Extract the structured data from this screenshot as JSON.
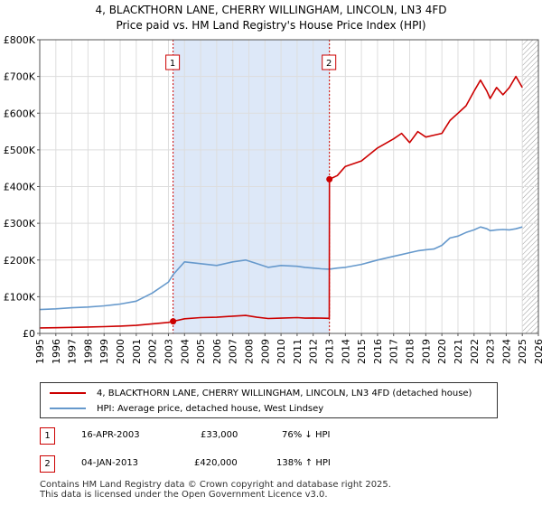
{
  "title_line1": "4, BLACKTHORN LANE, CHERRY WILLINGHAM, LINCOLN, LN3 4FD",
  "title_line2": "Price paid vs. HM Land Registry's House Price Index (HPI)",
  "colors": {
    "property": "#cc0000",
    "hpi": "#6699cc",
    "shade": "#dde8f8",
    "grid": "#dddddd"
  },
  "chart_data": {
    "type": "line",
    "title": "Price paid vs. HM Land Registry's House Price Index (HPI)",
    "xlabel": "",
    "ylabel": "",
    "xlim": [
      1995,
      2026
    ],
    "ylim": [
      0,
      800000
    ],
    "x_ticks": [
      "1995",
      "1996",
      "1997",
      "1998",
      "1999",
      "2000",
      "2001",
      "2002",
      "2003",
      "2004",
      "2005",
      "2006",
      "2007",
      "2008",
      "2009",
      "2010",
      "2011",
      "2012",
      "2013",
      "2014",
      "2015",
      "2016",
      "2017",
      "2018",
      "2019",
      "2020",
      "2021",
      "2022",
      "2023",
      "2024",
      "2025",
      "2026"
    ],
    "y_ticks": [
      {
        "value": 0,
        "label": "£0"
      },
      {
        "value": 100000,
        "label": "£100K"
      },
      {
        "value": 200000,
        "label": "£200K"
      },
      {
        "value": 300000,
        "label": "£300K"
      },
      {
        "value": 400000,
        "label": "£400K"
      },
      {
        "value": 500000,
        "label": "£500K"
      },
      {
        "value": 600000,
        "label": "£600K"
      },
      {
        "value": 700000,
        "label": "£700K"
      },
      {
        "value": 800000,
        "label": "£800K"
      }
    ],
    "shaded_range": [
      2003.29,
      2013.01
    ],
    "future_hatch_from": 2025.0,
    "series": [
      {
        "name": "4, BLACKTHORN LANE, CHERRY WILLINGHAM, LINCOLN, LN3 4FD (detached house)",
        "color": "#cc0000",
        "x": [
          1995.0,
          1996.0,
          1997.0,
          1998.0,
          1999.0,
          2000.0,
          2001.0,
          2002.0,
          2003.0,
          2003.29,
          2004.0,
          2005.0,
          2006.0,
          2007.0,
          2007.8,
          2008.5,
          2009.2,
          2010.0,
          2011.0,
          2011.5,
          2012.0,
          2012.5,
          2013.0,
          2013.01,
          2013.5,
          2014.0,
          2015.0,
          2016.0,
          2017.0,
          2017.5,
          2018.0,
          2018.5,
          2019.0,
          2019.5,
          2020.0,
          2020.5,
          2021.0,
          2021.5,
          2022.0,
          2022.4,
          2022.8,
          2023.0,
          2023.4,
          2023.8,
          2024.2,
          2024.6,
          2025.0
        ],
        "y": [
          15000,
          15500,
          16500,
          17500,
          18500,
          20000,
          22000,
          26000,
          30000,
          33000,
          40000,
          43000,
          44000,
          47000,
          49000,
          44000,
          40500,
          41500,
          43000,
          41500,
          42000,
          41500,
          41000,
          420000,
          430000,
          455000,
          470000,
          505000,
          530000,
          545000,
          520000,
          550000,
          535000,
          540000,
          545000,
          580000,
          600000,
          620000,
          660000,
          690000,
          660000,
          640000,
          670000,
          650000,
          670000,
          700000,
          670000
        ]
      },
      {
        "name": "HPI: Average price, detached house, West Lindsey",
        "color": "#6699cc",
        "x": [
          1995.0,
          1996.0,
          1997.0,
          1998.0,
          1999.0,
          2000.0,
          2001.0,
          2002.0,
          2003.0,
          2003.29,
          2004.0,
          2005.0,
          2006.0,
          2007.0,
          2007.8,
          2008.5,
          2009.2,
          2010.0,
          2011.0,
          2011.5,
          2012.0,
          2012.5,
          2013.0,
          2013.5,
          2014.0,
          2015.0,
          2016.0,
          2017.0,
          2017.5,
          2018.0,
          2018.5,
          2019.0,
          2019.5,
          2020.0,
          2020.5,
          2021.0,
          2021.5,
          2022.0,
          2022.4,
          2022.8,
          2023.0,
          2023.4,
          2023.8,
          2024.2,
          2024.6,
          2025.0
        ],
        "y": [
          65000,
          67000,
          70000,
          72000,
          75000,
          80000,
          88000,
          110000,
          140000,
          160000,
          195000,
          190000,
          185000,
          195000,
          200000,
          190000,
          180000,
          185000,
          183000,
          180000,
          178000,
          176000,
          175000,
          178000,
          180000,
          188000,
          200000,
          210000,
          215000,
          220000,
          225000,
          228000,
          230000,
          240000,
          260000,
          265000,
          275000,
          282000,
          290000,
          285000,
          280000,
          282000,
          283000,
          282000,
          285000,
          290000
        ]
      }
    ],
    "annotations": [
      {
        "label": "1",
        "x": 2003.29,
        "y": 33000
      },
      {
        "label": "2",
        "x": 2013.01,
        "y": 420000
      }
    ]
  },
  "legend": {
    "property_label": "4, BLACKTHORN LANE, CHERRY WILLINGHAM, LINCOLN, LN3 4FD (detached house)",
    "hpi_label": "HPI: Average price, detached house, West Lindsey"
  },
  "transactions": [
    {
      "num": "1",
      "date": "16-APR-2003",
      "price": "£33,000",
      "hpi": "76% ↓ HPI"
    },
    {
      "num": "2",
      "date": "04-JAN-2013",
      "price": "£420,000",
      "hpi": "138% ↑ HPI"
    }
  ],
  "footer_line1": "Contains HM Land Registry data © Crown copyright and database right 2025.",
  "footer_line2": "This data is licensed under the Open Government Licence v3.0."
}
